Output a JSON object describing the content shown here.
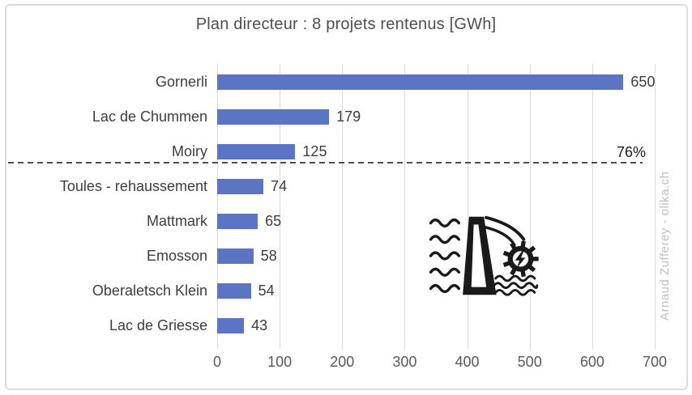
{
  "chart_data": {
    "type": "bar",
    "orientation": "horizontal",
    "title": "Plan directeur : 8 projets rentenus [GWh]",
    "categories": [
      "Gornerli",
      "Lac de Chummen",
      "Moiry",
      "Toules - rehaussement",
      "Mattmark",
      "Emosson",
      "Oberaletsch Klein",
      "Lac de Griesse"
    ],
    "values": [
      650,
      179,
      125,
      74,
      65,
      58,
      54,
      43
    ],
    "unit": "GWh",
    "xlabel": "",
    "ylabel": "",
    "xlim": [
      0,
      700
    ],
    "x_tick_step": 100,
    "x_tick_labels": [
      "0",
      "100",
      "200",
      "300",
      "400",
      "500",
      "600",
      "700"
    ],
    "grid": true,
    "legend": false,
    "bar_color": "#5b74c3",
    "value_labels_shown": true,
    "annotation": {
      "text": "76%",
      "type": "dashed-threshold-line",
      "after_category_index": 2
    },
    "watermark": "Arnaud Zufferey - olika.ch",
    "icon": "hydroelectric-dam-icon"
  }
}
